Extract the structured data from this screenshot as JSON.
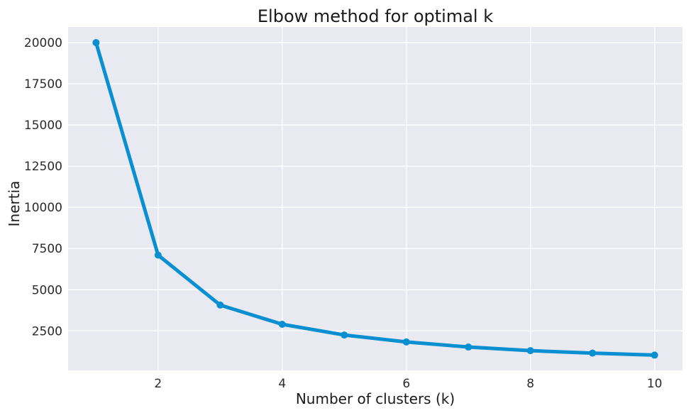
{
  "chart_data": {
    "type": "line",
    "title": "Elbow method for optimal k",
    "xlabel": "Number of clusters (k)",
    "ylabel": "Inertia",
    "x": [
      1,
      2,
      3,
      4,
      5,
      6,
      7,
      8,
      9,
      10
    ],
    "series": [
      {
        "values": [
          20000,
          7100,
          4070,
          2900,
          2250,
          1830,
          1520,
          1300,
          1150,
          1030
        ]
      }
    ],
    "xlim": [
      0.55,
      10.45
    ],
    "ylim": [
      100,
      20950
    ],
    "xticks": [
      2,
      4,
      6,
      8,
      10
    ],
    "yticks": [
      2500,
      5000,
      7500,
      10000,
      12500,
      15000,
      17500,
      20000
    ],
    "grid": true,
    "line_color": "#0a8fd0",
    "background_color": "#e9e9f1"
  }
}
